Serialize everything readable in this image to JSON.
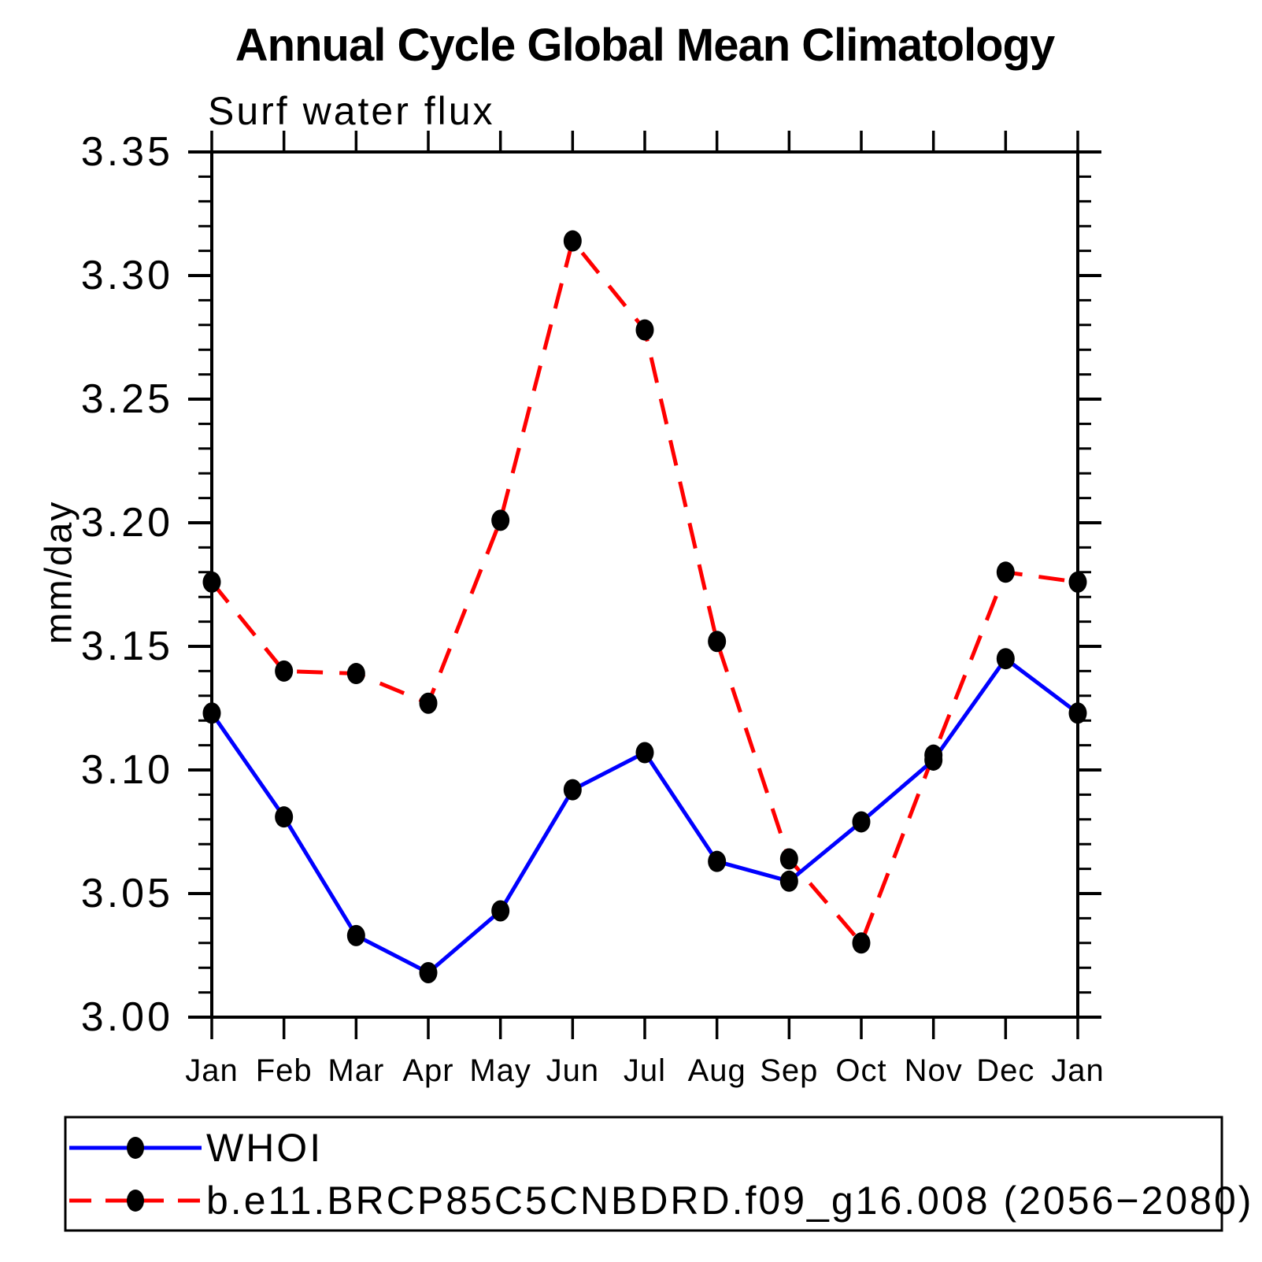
{
  "chart_data": {
    "type": "line",
    "title": "Annual Cycle Global Mean Climatology",
    "subtitle": "Surf water flux",
    "ylabel": "mm/day",
    "xlabel": "",
    "categories": [
      "Jan",
      "Feb",
      "Mar",
      "Apr",
      "May",
      "Jun",
      "Jul",
      "Aug",
      "Sep",
      "Oct",
      "Nov",
      "Dec",
      "Jan"
    ],
    "series": [
      {
        "name": "WHOI",
        "color": "#0000ff",
        "style": "solid",
        "marker": "filled-circle",
        "values": [
          3.123,
          3.081,
          3.033,
          3.018,
          3.043,
          3.092,
          3.107,
          3.063,
          3.055,
          3.079,
          3.104,
          3.145,
          3.123
        ]
      },
      {
        "name": "b.e11.BRCP85C5CNBDRD.f09_g16.008 (2056−2080)",
        "color": "#ff0000",
        "style": "dashed",
        "marker": "filled-circle",
        "values": [
          3.176,
          3.14,
          3.139,
          3.127,
          3.201,
          3.314,
          3.278,
          3.152,
          3.064,
          3.03,
          3.106,
          3.18,
          3.176
        ]
      }
    ],
    "ylim": [
      3.0,
      3.35
    ],
    "y_major_step": 0.05,
    "y_minor_step": 0.01,
    "y_tick_labels": [
      "3.00",
      "3.05",
      "3.10",
      "3.15",
      "3.20",
      "3.25",
      "3.30",
      "3.35"
    ],
    "grid": false,
    "legend_position": "bottom-left-box",
    "marker": {
      "shape": "ellipse",
      "color": "#000000"
    },
    "axis_color": "#000000",
    "background": "#ffffff"
  }
}
